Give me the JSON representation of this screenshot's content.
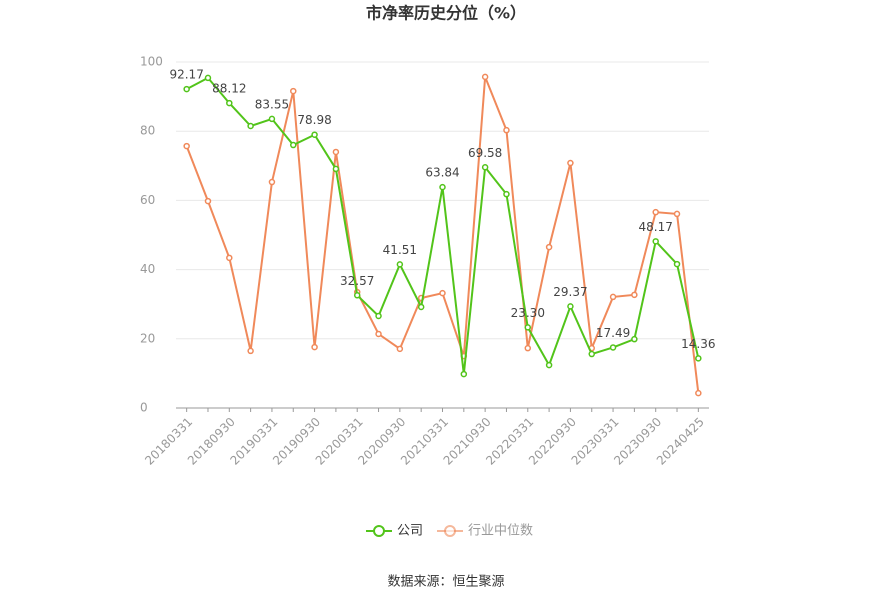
{
  "chart_data": {
    "type": "line",
    "title": "市净率历史分位（%）",
    "categories": [
      "20180331",
      null,
      "20180930",
      null,
      "20190331",
      null,
      "20190930",
      null,
      "20200331",
      null,
      "20200930",
      null,
      "20210331",
      null,
      "20210930",
      null,
      "20220331",
      null,
      "20220930",
      null,
      "20230331",
      null,
      "20230930",
      null,
      "20240425"
    ],
    "series": [
      {
        "name": "公司",
        "color": "#52c41a",
        "values": [
          92.17,
          95.4,
          88.12,
          81.5,
          83.55,
          76.0,
          78.98,
          69.1,
          32.57,
          26.6,
          41.51,
          29.2,
          63.84,
          9.8,
          69.58,
          61.8,
          23.3,
          12.4,
          29.37,
          15.6,
          17.49,
          19.9,
          48.17,
          41.6,
          14.36
        ],
        "value_labels": [
          "92.17",
          null,
          "88.12",
          null,
          "83.55",
          null,
          "78.98",
          null,
          "32.57",
          null,
          "41.51",
          null,
          "63.84",
          null,
          "69.58",
          null,
          "23.30",
          null,
          "29.37",
          null,
          "17.49",
          null,
          "48.17",
          null,
          "14.36"
        ]
      },
      {
        "name": "行业中位数",
        "color": "#f0895a",
        "values": [
          75.7,
          59.8,
          43.4,
          16.5,
          65.3,
          91.6,
          17.6,
          74.0,
          33.5,
          21.4,
          17.1,
          31.8,
          33.2,
          15.0,
          95.7,
          80.3,
          17.3,
          46.5,
          70.8,
          17.3,
          32.1,
          32.7,
          56.6,
          56.1,
          4.3
        ]
      }
    ],
    "ylim": [
      0,
      100
    ],
    "yticks": [
      0,
      20,
      40,
      60,
      80,
      100
    ],
    "grid": true,
    "source": "数据来源：恒生聚源"
  }
}
